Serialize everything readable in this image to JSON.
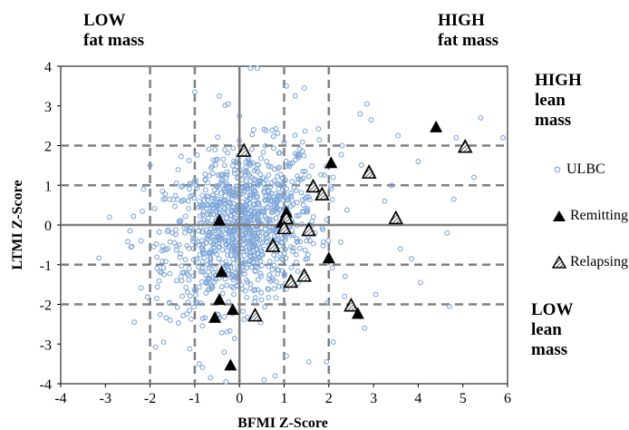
{
  "corner_labels": {
    "top_left": [
      "LOW",
      "fat mass"
    ],
    "top_right": [
      "HIGH",
      "fat mass"
    ],
    "right_top": [
      "HIGH",
      "lean",
      "mass"
    ],
    "right_bottom": [
      "LOW",
      "lean",
      "mass"
    ]
  },
  "colors": {
    "ulbc": "#7fa7d9",
    "remitting": "#000000",
    "relapsing_fill": "#ffffff",
    "relapsing_stroke": "#000000",
    "grid_dashed": "#808080",
    "axis_zero": "#808080"
  },
  "chart_data": {
    "type": "scatter",
    "xlabel": "BFMI Z-Score",
    "ylabel": "LTMI Z-Score",
    "xlim": [
      -4,
      6
    ],
    "ylim": [
      -4,
      4
    ],
    "x_ticks": [
      -4,
      -3,
      -2,
      -1,
      0,
      1,
      2,
      3,
      4,
      5,
      6
    ],
    "y_ticks": [
      -4,
      -3,
      -2,
      -1,
      0,
      1,
      2,
      3,
      4
    ],
    "dashed_x": [
      -2,
      -1,
      1,
      2
    ],
    "dashed_y": [
      -2,
      -1,
      1,
      2
    ],
    "legend": [
      "ULBC",
      "Remitting",
      "Relapsing"
    ],
    "series": [
      {
        "name": "Remitting",
        "marker": "filled-triangle",
        "points": [
          [
            4.4,
            2.45
          ],
          [
            2.05,
            1.55
          ],
          [
            2.9,
            1.35
          ],
          [
            1.05,
            0.3
          ],
          [
            0.95,
            0.05
          ],
          [
            -0.45,
            0.1
          ],
          [
            0.75,
            -0.5
          ],
          [
            2.0,
            -0.85
          ],
          [
            -0.4,
            -1.2
          ],
          [
            -0.45,
            -1.9
          ],
          [
            -0.15,
            -2.15
          ],
          [
            -0.55,
            -2.35
          ],
          [
            2.65,
            -2.25
          ],
          [
            -0.2,
            -3.55
          ]
        ]
      },
      {
        "name": "Relapsing",
        "marker": "hatched-triangle",
        "points": [
          [
            5.05,
            1.95
          ],
          [
            0.1,
            1.85
          ],
          [
            2.9,
            1.3
          ],
          [
            1.65,
            0.95
          ],
          [
            1.85,
            0.75
          ],
          [
            3.5,
            0.15
          ],
          [
            1.05,
            0.15
          ],
          [
            1.0,
            -0.1
          ],
          [
            1.55,
            -0.15
          ],
          [
            0.75,
            -0.55
          ],
          [
            1.45,
            -1.3
          ],
          [
            1.15,
            -1.45
          ],
          [
            0.35,
            -2.3
          ],
          [
            2.5,
            -2.05
          ]
        ]
      }
    ],
    "ulbc_outliers": [
      [
        5.9,
        2.2
      ],
      [
        5.4,
        2.7
      ],
      [
        5.25,
        1.2
      ],
      [
        4.85,
        2.2
      ],
      [
        4.8,
        0.65
      ],
      [
        4.0,
        1.6
      ],
      [
        4.05,
        -1.45
      ],
      [
        4.7,
        -2.05
      ],
      [
        3.55,
        2.25
      ],
      [
        2.85,
        3.05
      ],
      [
        2.7,
        2.8
      ],
      [
        2.95,
        2.65
      ],
      [
        2.3,
        2.0
      ],
      [
        3.25,
        0.6
      ],
      [
        3.6,
        -0.6
      ],
      [
        3.85,
        -0.85
      ],
      [
        3.05,
        -1.75
      ],
      [
        2.35,
        -1.8
      ],
      [
        2.8,
        -2.6
      ],
      [
        2.1,
        -2.95
      ],
      [
        1.95,
        -3.45
      ],
      [
        -0.25,
        3.05
      ],
      [
        0.0,
        2.75
      ],
      [
        0.25,
        3.95
      ],
      [
        0.4,
        3.95
      ],
      [
        -1.0,
        3.35
      ],
      [
        -0.45,
        3.25
      ],
      [
        1.25,
        3.25
      ],
      [
        1.45,
        3.45
      ],
      [
        1.05,
        3.5
      ],
      [
        -2.0,
        1.5
      ],
      [
        -2.2,
        -0.4
      ],
      [
        -2.45,
        -0.15
      ],
      [
        -1.75,
        -1.2
      ],
      [
        -1.55,
        -2.4
      ],
      [
        -1.7,
        -2.95
      ],
      [
        -0.9,
        -3.5
      ],
      [
        -0.3,
        -3.95
      ],
      [
        0.55,
        -3.9
      ],
      [
        1.05,
        -3.3
      ],
      [
        1.55,
        -3.45
      ],
      [
        0.8,
        -3.8
      ],
      [
        -0.65,
        -3.85
      ],
      [
        -2.15,
        0.9
      ],
      [
        3.4,
        1.0
      ],
      [
        4.65,
        -0.2
      ]
    ],
    "ulbc_cloud": {
      "center": [
        0.05,
        -0.05
      ],
      "spread": [
        0.85,
        1.0
      ],
      "count": 1100,
      "correlation": 0.25
    }
  }
}
